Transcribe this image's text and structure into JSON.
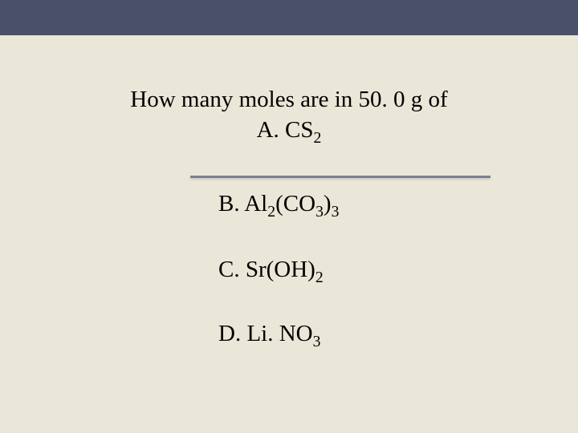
{
  "slide": {
    "background_color": "#eae7d8",
    "top_bar_color": "#4a4f6a",
    "underline_color": "#7a7e94",
    "text_color": "#000000",
    "font_family": "Times New Roman",
    "title_fontsize": 29,
    "option_fontsize": 29,
    "question": {
      "line1": "How many moles are in 50. 0 g of",
      "option_a": {
        "prefix": "A. CS",
        "sub": "2"
      }
    },
    "options": {
      "b": {
        "prefix": "B. Al",
        "sub1": "2",
        "mid": "(CO",
        "sub2": "3",
        "close": ")",
        "sub3": "3"
      },
      "c": {
        "prefix": "C. Sr(OH)",
        "sub": "2"
      },
      "d": {
        "prefix": "D. Li. NO",
        "sub": "3"
      }
    }
  }
}
